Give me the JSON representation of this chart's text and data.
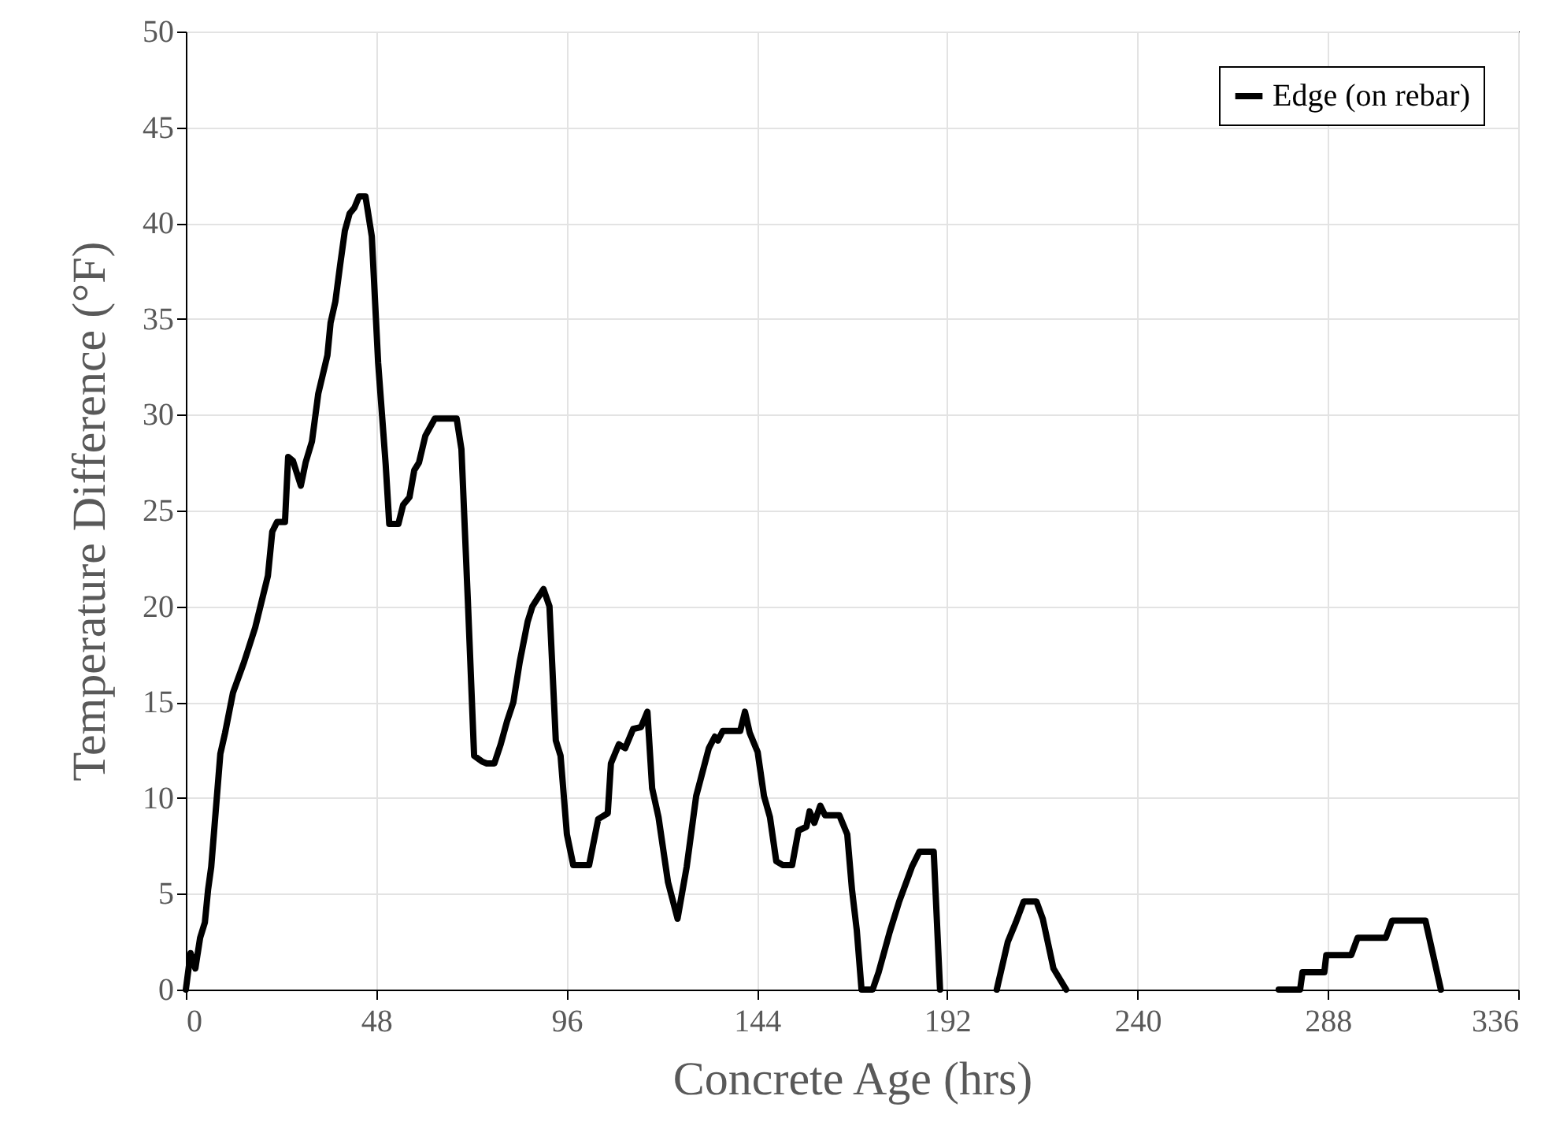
{
  "chart_data": {
    "type": "line",
    "xlabel": "Concrete Age (hrs)",
    "ylabel": "Temperature Difference (°F)",
    "xlim": [
      0,
      336
    ],
    "xticks": [
      0,
      48,
      96,
      144,
      192,
      240,
      288,
      336
    ],
    "ylim": [
      0,
      50
    ],
    "yticks": [
      0,
      5,
      10,
      15,
      20,
      25,
      30,
      35,
      40,
      45,
      50
    ],
    "grid": true,
    "legend": "top right",
    "line_style": "solid",
    "marker": "none",
    "x": [
      0,
      1.2,
      2.4,
      3.6,
      4.8,
      5.6,
      6.4,
      7.1,
      8.7,
      9.9,
      11.9,
      14.7,
      17.5,
      20.7,
      21.8,
      23,
      25,
      25.8,
      27,
      29,
      30.2,
      31.8,
      33.4,
      35.7,
      36.5,
      37.7,
      38.9,
      40.1,
      41.3,
      42.5,
      43.7,
      45.3,
      46.9,
      48.5,
      50.4,
      51.3,
      53.6,
      54.8,
      56.4,
      57.6,
      58.8,
      60.4,
      62.8,
      68.3,
      69.5,
      71.1,
      72.7,
      74.7,
      75.9,
      77.8,
      79.4,
      81,
      82.6,
      84.2,
      86.2,
      87.4,
      90.2,
      91.7,
      93.3,
      94.5,
      96.1,
      97.7,
      101.7,
      104,
      106.4,
      107.2,
      109.2,
      110.8,
      112.8,
      114.8,
      116.4,
      117.6,
      119.2,
      121.6,
      124,
      126.3,
      128.7,
      131.9,
      133.4,
      134.2,
      135.4,
      139.8,
      141,
      142.2,
      144.2,
      145.8,
      147.3,
      148.9,
      150.5,
      152.9,
      154.5,
      156.5,
      157.3,
      158.5,
      160,
      161.2,
      164.8,
      166.8,
      168,
      169.2,
      170.4,
      173.2,
      174.7,
      177.5,
      179.9,
      183.1,
      185,
      188.6,
      190.2,
      197,
      204.5,
      207.3,
      209.3,
      211.3,
      214.5,
      216.1,
      218.8,
      222,
      250,
      275.6,
      281,
      281.6,
      287.1,
      287.6,
      293.9,
      295.5,
      302.6,
      304.2,
      312.6,
      316.5
    ],
    "series": [
      {
        "name": "Edge (on rebar)",
        "color": "#000000",
        "values": [
          0,
          1.9,
          1.1,
          2.7,
          3.5,
          5.2,
          6.4,
          8.2,
          12.3,
          13.4,
          15.5,
          17.1,
          18.9,
          21.6,
          23.9,
          24.4,
          24.4,
          27.8,
          27.6,
          26.3,
          27.5,
          28.6,
          31.1,
          33.1,
          34.8,
          35.9,
          37.8,
          39.6,
          40.5,
          40.8,
          41.4,
          41.4,
          39.3,
          32.7,
          27.4,
          24.3,
          24.3,
          25.3,
          25.7,
          27.1,
          27.5,
          28.9,
          29.8,
          29.8,
          28.2,
          20.4,
          12.2,
          11.9,
          11.8,
          11.8,
          12.8,
          14,
          15,
          17.1,
          19.2,
          20,
          20.9,
          20,
          13,
          12.2,
          8.1,
          6.5,
          6.5,
          8.9,
          9.2,
          11.8,
          12.8,
          12.6,
          13.6,
          13.7,
          14.5,
          10.5,
          9,
          5.6,
          3.7,
          6.4,
          10.1,
          12.6,
          13.2,
          13,
          13.5,
          13.5,
          14.5,
          13.4,
          12.4,
          10.1,
          9,
          6.7,
          6.5,
          6.5,
          8.3,
          8.5,
          9.3,
          8.7,
          9.6,
          9.1,
          9.1,
          8.1,
          5.2,
          3.1,
          0,
          0,
          0.9,
          3,
          4.6,
          6.4,
          7.2,
          7.2,
          0,
          null,
          0,
          2.5,
          3.5,
          4.6,
          4.6,
          3.7,
          1.1,
          0,
          null,
          0,
          0,
          0.9,
          0.9,
          1.8,
          1.8,
          2.7,
          2.7,
          3.6,
          3.6,
          0
        ]
      }
    ]
  }
}
